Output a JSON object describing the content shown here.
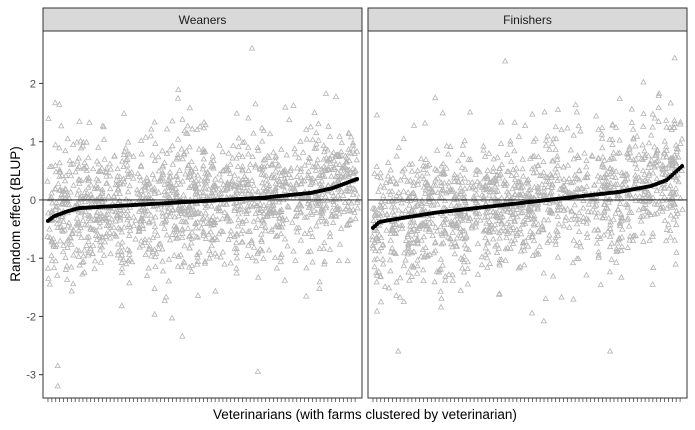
{
  "chart_data": {
    "type": "scatter",
    "facets": [
      {
        "title": "Weaners"
      },
      {
        "title": "Finishers"
      }
    ],
    "xlabel": "Veterinarians (with farms clustered by veterinarian)",
    "ylabel": "Random effect (BLUP)",
    "ylim": [
      -3.4,
      2.9
    ],
    "yticks": [
      2,
      1,
      0,
      -1,
      -2,
      -3
    ],
    "yticks_labels": [
      "2",
      "1",
      "0",
      "-1",
      "-2",
      "-3"
    ],
    "grid": false,
    "reference_line_y": 0,
    "series": [
      {
        "name": "Farms",
        "marker": "triangle-open",
        "color": "#b5b5b5",
        "note_points": "dense cloud per veterinarian",
        "outliers": {
          "Weaners": [
            [
              210,
              2.6
            ],
            [
              285,
              1.82
            ],
            [
              9,
              -2.85
            ],
            [
              9,
              -3.2
            ],
            [
              215,
              -2.95
            ]
          ],
          "Finishers": [
            [
              136,
              2.38
            ],
            [
              64,
              1.75
            ],
            [
              244,
              -2.6
            ],
            [
              26,
              -2.6
            ]
          ]
        }
      },
      {
        "name": "Veterinarians",
        "marker": "circle-filled",
        "color": "#000000",
        "sorted_blup": {
          "Weaners": {
            "anchors_x": [
              0,
              0.02,
              0.06,
              0.1,
              0.3,
              0.5,
              0.7,
              0.85,
              0.92,
              0.96,
              1
            ],
            "anchors_y": [
              -0.36,
              -0.28,
              -0.2,
              -0.14,
              -0.08,
              -0.02,
              0.04,
              0.12,
              0.2,
              0.28,
              0.36
            ]
          },
          "Finishers": {
            "anchors_x": [
              0,
              0.02,
              0.06,
              0.2,
              0.4,
              0.6,
              0.8,
              0.9,
              0.95,
              1
            ],
            "anchors_y": [
              -0.48,
              -0.38,
              -0.34,
              -0.22,
              -0.1,
              0.02,
              0.14,
              0.24,
              0.34,
              0.58
            ]
          }
        }
      }
    ]
  }
}
